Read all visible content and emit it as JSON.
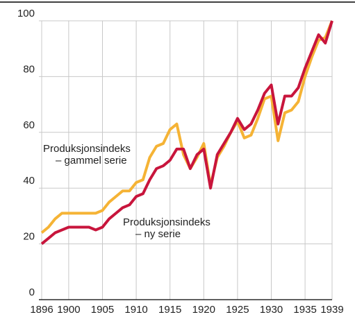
{
  "chart_data": {
    "type": "line",
    "x": [
      1896,
      1897,
      1898,
      1899,
      1900,
      1901,
      1902,
      1903,
      1904,
      1905,
      1906,
      1907,
      1908,
      1909,
      1910,
      1911,
      1912,
      1913,
      1914,
      1915,
      1916,
      1917,
      1918,
      1919,
      1920,
      1921,
      1922,
      1923,
      1924,
      1925,
      1926,
      1927,
      1928,
      1929,
      1930,
      1931,
      1932,
      1933,
      1934,
      1935,
      1936,
      1937,
      1938,
      1939
    ],
    "series": [
      {
        "label": [
          "Produksjonsindeks",
          "– gammel serie"
        ],
        "color": "#f5b335",
        "values": [
          24,
          26,
          29,
          31,
          31,
          31,
          31,
          31,
          31,
          32,
          35,
          37,
          39,
          39,
          42,
          43,
          51,
          55,
          56,
          61,
          63,
          52,
          47,
          51,
          56,
          41,
          51,
          55,
          60,
          64,
          58,
          59,
          65,
          72,
          73,
          57,
          67,
          68,
          71,
          80,
          87,
          93,
          94,
          100
        ]
      },
      {
        "label": [
          "Produksjonsindeks",
          "– ny serie"
        ],
        "color": "#c8153c",
        "values": [
          20,
          22,
          24,
          25,
          26,
          26,
          26,
          26,
          25,
          26,
          29,
          31,
          33,
          34,
          37,
          38,
          43,
          47,
          48,
          50,
          54,
          54,
          47,
          52,
          54,
          40,
          52,
          56,
          60,
          65,
          61,
          63,
          68,
          74,
          77,
          63,
          73,
          73,
          76,
          83,
          89,
          95,
          92,
          100
        ]
      }
    ],
    "xlim": [
      1896,
      1939
    ],
    "xticks": [
      1896,
      1900,
      1905,
      1910,
      1915,
      1920,
      1925,
      1930,
      1935,
      1939
    ],
    "ylim": [
      0,
      100
    ],
    "yticks": [
      0,
      20,
      40,
      60,
      80,
      100
    ],
    "grid": true
  }
}
